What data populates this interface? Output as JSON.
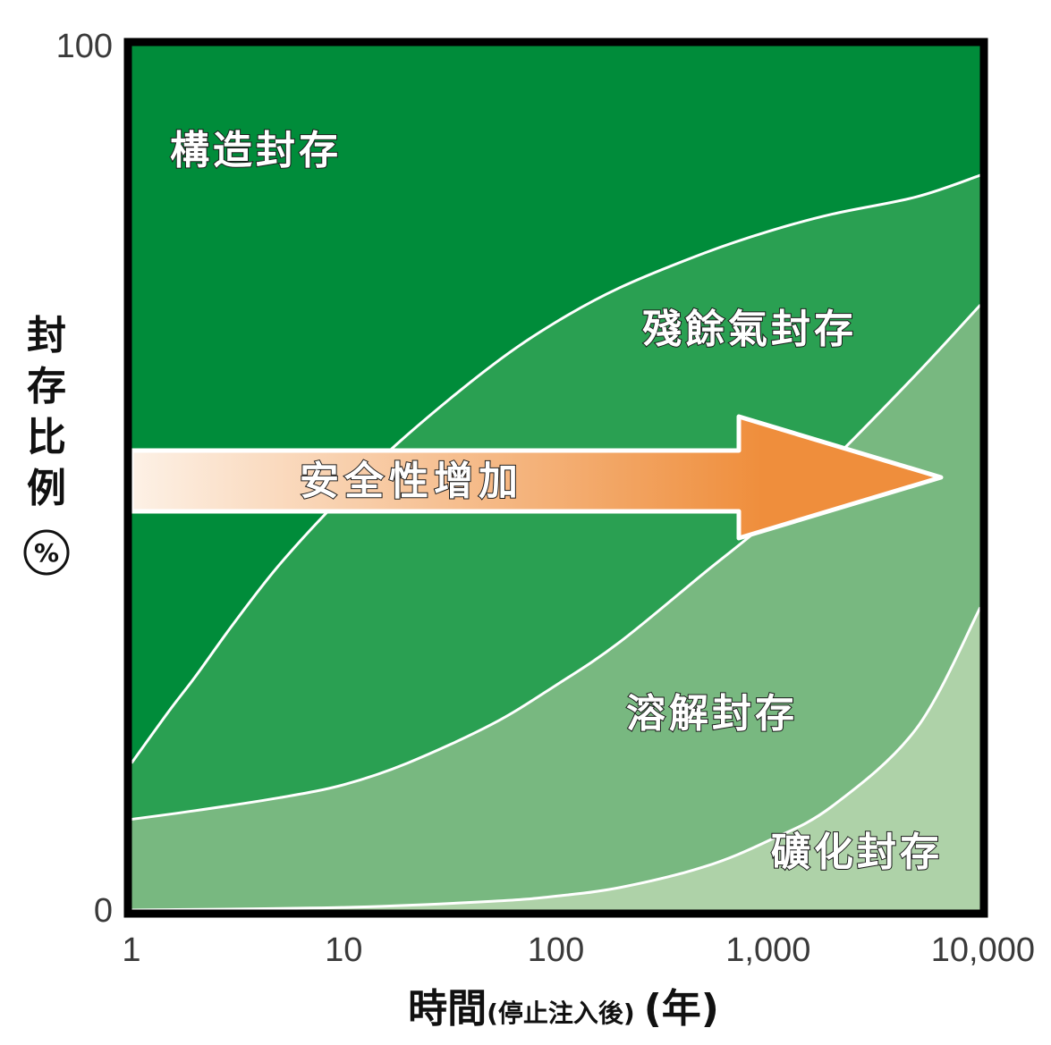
{
  "chart_data": {
    "type": "area",
    "xscale": "log",
    "x_ticks": [
      "1",
      "10",
      "100",
      "1,000",
      "10,000"
    ],
    "x_tick_values": [
      1,
      10,
      100,
      1000,
      10000
    ],
    "y_ticks": [
      "0",
      "100"
    ],
    "y_tick_values": [
      0,
      100
    ],
    "ylim": [
      0,
      100
    ],
    "xlim": [
      1,
      10000
    ],
    "xlabel": "時間",
    "xlabel_sub": "(停止注入後)",
    "xlabel_unit": "(年)",
    "ylabel": [
      "封",
      "存",
      "比",
      "例",
      "%"
    ],
    "boundaries": [
      {
        "between": [
          "殘餘氣封存",
          "構造封存"
        ],
        "x": [
          1,
          1.5,
          2,
          3,
          5,
          10,
          20,
          50,
          100,
          200,
          500,
          1000,
          2000,
          5000,
          10000
        ],
        "y": [
          17,
          23,
          27,
          33,
          40,
          48,
          55,
          63,
          68,
          72,
          76,
          78.5,
          80.5,
          82.5,
          85
        ]
      },
      {
        "between": [
          "溶解封存",
          "殘餘氣封存"
        ],
        "x": [
          1,
          2,
          5,
          10,
          20,
          50,
          100,
          200,
          500,
          1000,
          2000,
          5000,
          10000
        ],
        "y": [
          10.5,
          11.5,
          13,
          14.5,
          17,
          21.5,
          26,
          31,
          39,
          45,
          52,
          62,
          70
        ]
      },
      {
        "between": [
          "礦化封存",
          "溶解封存"
        ],
        "x": [
          1,
          10,
          50,
          100,
          200,
          500,
          1000,
          2000,
          5000,
          10000
        ],
        "y": [
          0,
          0.3,
          1,
          1.6,
          2.6,
          5,
          8,
          12,
          21,
          35
        ]
      }
    ],
    "regions": [
      {
        "name": "構造封存",
        "color": "#008c3a"
      },
      {
        "name": "殘餘氣封存",
        "color": "#2aa052"
      },
      {
        "name": "溶解封存",
        "color": "#78b880"
      },
      {
        "name": "礦化封存",
        "color": "#aed2a8"
      }
    ],
    "annotation": {
      "text": "安全性增加",
      "type": "arrow",
      "direction": "right",
      "gradient": [
        "#fdf1e6",
        "#ef8e3c"
      ]
    }
  }
}
